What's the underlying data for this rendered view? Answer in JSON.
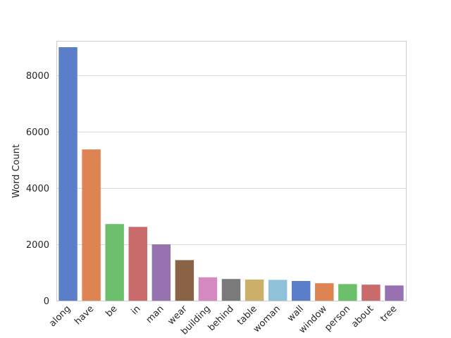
{
  "chart_data": {
    "type": "bar",
    "categories": [
      "along",
      "have",
      "be",
      "in",
      "man",
      "wear",
      "building",
      "behind",
      "table",
      "woman",
      "wall",
      "window",
      "person",
      "about",
      "tree"
    ],
    "values": [
      9000,
      5370,
      2720,
      2620,
      2000,
      1440,
      830,
      770,
      750,
      740,
      700,
      620,
      590,
      570,
      540
    ],
    "colors": [
      "#5a7ec7",
      "#dd8452",
      "#6cc06c",
      "#c96b6b",
      "#9673b0",
      "#8a6245",
      "#d48ac1",
      "#7a7a7a",
      "#cbb06a",
      "#8fc2d8",
      "#5a7ec7",
      "#dd8452",
      "#6cc06c",
      "#c96b6b",
      "#9673b0"
    ],
    "xlabel": "",
    "ylabel": "Word Count",
    "ylim": [
      0,
      9225
    ],
    "yticks": [
      0,
      2000,
      4000,
      6000,
      8000
    ],
    "grid": "horizontal",
    "legend": "none"
  }
}
